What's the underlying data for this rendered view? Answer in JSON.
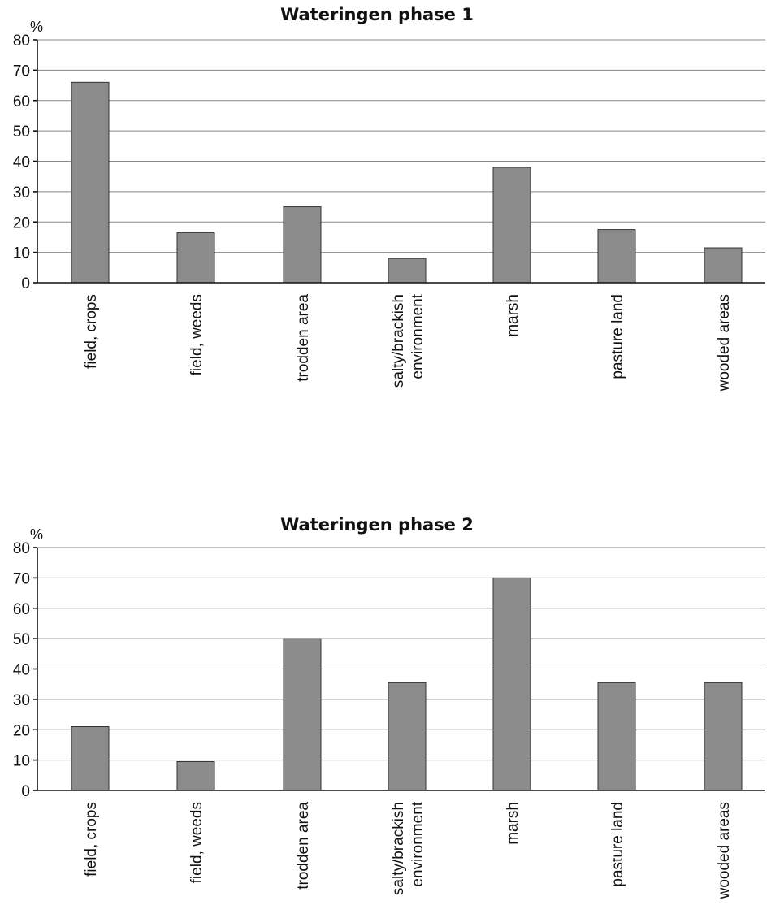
{
  "chart_data": [
    {
      "type": "bar",
      "title": "Wateringen phase 1",
      "ylabel": "%",
      "ylim": [
        0,
        80
      ],
      "yticks": [
        0,
        10,
        20,
        30,
        40,
        50,
        60,
        70,
        80
      ],
      "grid": true,
      "categories": [
        [
          "field, crops"
        ],
        [
          "field, weeds"
        ],
        [
          "trodden area"
        ],
        [
          "salty/brackish",
          "environment"
        ],
        [
          "marsh"
        ],
        [
          "pasture land"
        ],
        [
          "wooded areas"
        ]
      ],
      "values": [
        66,
        16.5,
        25,
        8,
        38,
        17.5,
        11.5
      ],
      "bar_color": "#8c8c8c"
    },
    {
      "type": "bar",
      "title": "Wateringen phase 2",
      "ylabel": "%",
      "ylim": [
        0,
        80
      ],
      "yticks": [
        0,
        10,
        20,
        30,
        40,
        50,
        60,
        70,
        80
      ],
      "grid": true,
      "categories": [
        [
          "field, crops"
        ],
        [
          "field, weeds"
        ],
        [
          "trodden area"
        ],
        [
          "salty/brackish",
          "environment"
        ],
        [
          "marsh"
        ],
        [
          "pasture land"
        ],
        [
          "wooded areas"
        ]
      ],
      "values": [
        21,
        9.5,
        50,
        35.5,
        70,
        35.5,
        35.5
      ],
      "bar_color": "#8c8c8c"
    }
  ]
}
